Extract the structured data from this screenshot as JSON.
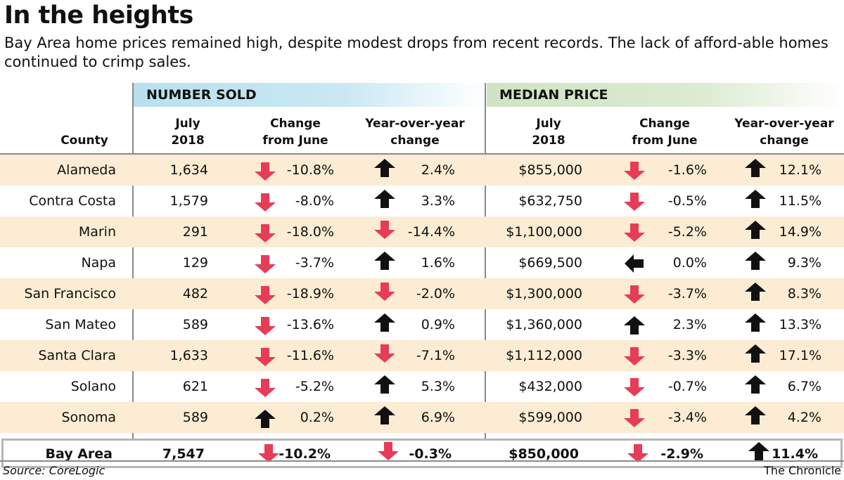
{
  "title": "In the heights",
  "subtitle": "Bay Area home prices remained high, despite modest drops from recent records. The lack of afford-able homes continued to crimp sales.",
  "groups": {
    "sold": "NUMBER SOLD",
    "price": "MEDIAN PRICE"
  },
  "headers": {
    "county": "County",
    "sold_july": "July\n2018",
    "sold_change": "Change\nfrom June",
    "sold_yoy": "Year-over-year\nchange",
    "price_july": "July\n2018",
    "price_change": "Change\nfrom June",
    "price_yoy": "Year-over-year\nchange"
  },
  "colors": {
    "down_arrow": "#e63c57",
    "up_arrow": "#111111",
    "row_shade": "#fbecd3"
  },
  "chart_data": {
    "type": "table",
    "columns": [
      "County",
      "July 2018 (sold)",
      "Change from June (sold)",
      "Year-over-year change (sold)",
      "July 2018 (median price)",
      "Change from June (median price)",
      "Year-over-year change (median price)"
    ],
    "rows": [
      {
        "county": "Alameda",
        "sold": "1,634",
        "sold_change": "-10.8%",
        "sold_change_dir": "down",
        "sold_yoy": "2.4%",
        "sold_yoy_dir": "up",
        "price": "$855,000",
        "price_change": "-1.6%",
        "price_change_dir": "down",
        "price_yoy": "12.1%",
        "price_yoy_dir": "up"
      },
      {
        "county": "Contra Costa",
        "sold": "1,579",
        "sold_change": "-8.0%",
        "sold_change_dir": "down",
        "sold_yoy": "3.3%",
        "sold_yoy_dir": "up",
        "price": "$632,750",
        "price_change": "-0.5%",
        "price_change_dir": "down",
        "price_yoy": "11.5%",
        "price_yoy_dir": "up"
      },
      {
        "county": "Marin",
        "sold": "291",
        "sold_change": "-18.0%",
        "sold_change_dir": "down",
        "sold_yoy": "-14.4%",
        "sold_yoy_dir": "down",
        "price": "$1,100,000",
        "price_change": "-5.2%",
        "price_change_dir": "down",
        "price_yoy": "14.9%",
        "price_yoy_dir": "up"
      },
      {
        "county": "Napa",
        "sold": "129",
        "sold_change": "-3.7%",
        "sold_change_dir": "down",
        "sold_yoy": "1.6%",
        "sold_yoy_dir": "up",
        "price": "$669,500",
        "price_change": "0.0%",
        "price_change_dir": "flat",
        "price_yoy": "9.3%",
        "price_yoy_dir": "up"
      },
      {
        "county": "San Francisco",
        "sold": "482",
        "sold_change": "-18.9%",
        "sold_change_dir": "down",
        "sold_yoy": "-2.0%",
        "sold_yoy_dir": "down",
        "price": "$1,300,000",
        "price_change": "-3.7%",
        "price_change_dir": "down",
        "price_yoy": "8.3%",
        "price_yoy_dir": "up"
      },
      {
        "county": "San Mateo",
        "sold": "589",
        "sold_change": "-13.6%",
        "sold_change_dir": "down",
        "sold_yoy": "0.9%",
        "sold_yoy_dir": "up",
        "price": "$1,360,000",
        "price_change": "2.3%",
        "price_change_dir": "up",
        "price_yoy": "13.3%",
        "price_yoy_dir": "up"
      },
      {
        "county": "Santa Clara",
        "sold": "1,633",
        "sold_change": "-11.6%",
        "sold_change_dir": "down",
        "sold_yoy": "-7.1%",
        "sold_yoy_dir": "down",
        "price": "$1,112,000",
        "price_change": "-3.3%",
        "price_change_dir": "down",
        "price_yoy": "17.1%",
        "price_yoy_dir": "up"
      },
      {
        "county": "Solano",
        "sold": "621",
        "sold_change": "-5.2%",
        "sold_change_dir": "down",
        "sold_yoy": "5.3%",
        "sold_yoy_dir": "up",
        "price": "$432,000",
        "price_change": "-0.7%",
        "price_change_dir": "down",
        "price_yoy": "6.7%",
        "price_yoy_dir": "up"
      },
      {
        "county": "Sonoma",
        "sold": "589",
        "sold_change": "0.2%",
        "sold_change_dir": "up",
        "sold_yoy": "6.9%",
        "sold_yoy_dir": "up",
        "price": "$599,000",
        "price_change": "-3.4%",
        "price_change_dir": "down",
        "price_yoy": "4.2%",
        "price_yoy_dir": "up"
      }
    ],
    "total": {
      "county": "Bay Area",
      "sold": "7,547",
      "sold_change": "-10.2%",
      "sold_change_dir": "down",
      "sold_yoy": "-0.3%",
      "sold_yoy_dir": "down",
      "price": "$850,000",
      "price_change": "-2.9%",
      "price_change_dir": "down",
      "price_yoy": "11.4%",
      "price_yoy_dir": "up"
    }
  },
  "footer": {
    "source": "Source: CoreLogic",
    "credit": "The Chronicle"
  }
}
